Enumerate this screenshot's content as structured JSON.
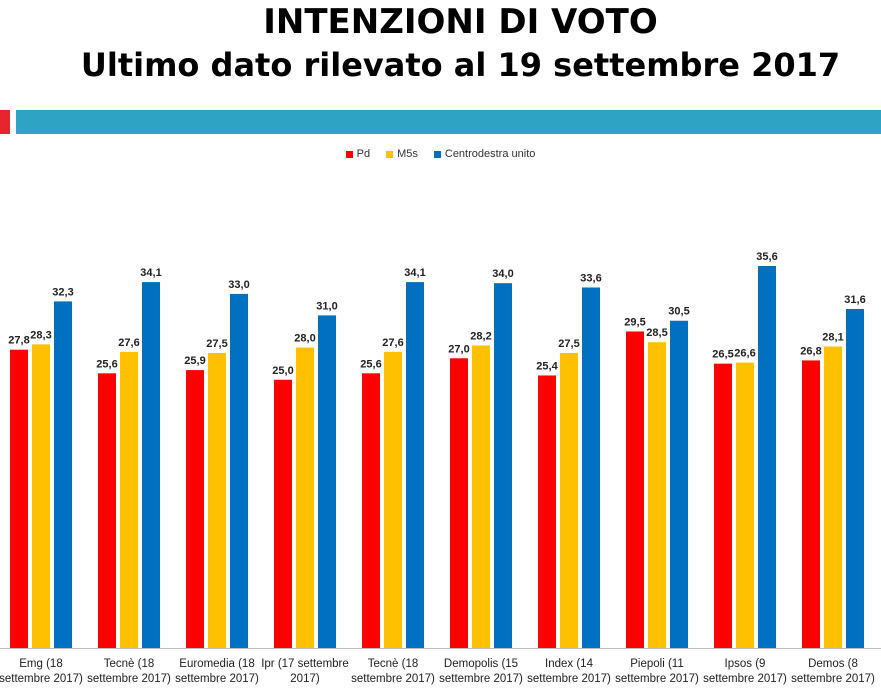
{
  "header": {
    "title_line1": "INTENZIONI DI VOTO",
    "title_line2": "Ultimo dato rilevato al 19 settembre 2017"
  },
  "chart_data": {
    "type": "bar",
    "categories": [
      "Emg (18 settembre 2017)",
      "Tecnè (18 settembre 2017)",
      "Euromedia (18 settembre 2017)",
      "Ipr (17 settembre 2017)",
      "Tecnè (18 settembre 2017)",
      "Demopolis (15 settembre 2017)",
      "Index (14 settembre 2017)",
      "Piepoli (11 settembre 2017)",
      "Ipsos (9 settembre 2017)",
      "Demos (8 settembre 2017)"
    ],
    "category_lines": [
      [
        "Emg (18",
        "settembre 2017)"
      ],
      [
        "Tecnè (18",
        "settembre 2017)"
      ],
      [
        "Euromedia (18",
        "settembre 2017)"
      ],
      [
        "Ipr (17 settembre",
        "2017)"
      ],
      [
        "Tecnè (18",
        "settembre 2017)"
      ],
      [
        "Demopolis (15",
        "settembre 2017)"
      ],
      [
        "Index (14",
        "settembre 2017)"
      ],
      [
        "Piepoli (11",
        "settembre 2017)"
      ],
      [
        "Ipsos (9",
        "settembre 2017)"
      ],
      [
        "Demos (8",
        "settembre 2017)"
      ]
    ],
    "series": [
      {
        "name": "Pd",
        "color": "#ff0000",
        "values": [
          27.8,
          25.6,
          25.9,
          25.0,
          25.6,
          27.0,
          25.4,
          29.5,
          26.5,
          26.8
        ],
        "labels": [
          "27,8",
          "25,6",
          "25,9",
          "25,0",
          "25,6",
          "27,0",
          "25,4",
          "29,5",
          "26,5",
          "26,8"
        ]
      },
      {
        "name": "M5s",
        "color": "#ffc000",
        "values": [
          28.3,
          27.6,
          27.5,
          28.0,
          27.6,
          28.2,
          27.5,
          28.5,
          26.6,
          28.1
        ],
        "labels": [
          "28,3",
          "27,6",
          "27,5",
          "28,0",
          "27,6",
          "28,2",
          "27,5",
          "28,5",
          "26,6",
          "28,1"
        ]
      },
      {
        "name": "Centrodestra unito",
        "color": "#0070c0",
        "values": [
          32.3,
          34.1,
          33.0,
          31.0,
          34.1,
          34.0,
          33.6,
          30.5,
          35.6,
          31.6
        ],
        "labels": [
          "32,3",
          "34,1",
          "33,0",
          "31,0",
          "34,1",
          "34,0",
          "33,6",
          "30,5",
          "35,6",
          "31,6"
        ]
      }
    ],
    "ylim": [
      0,
      40
    ],
    "legend_position": "top-center",
    "grid": false
  }
}
